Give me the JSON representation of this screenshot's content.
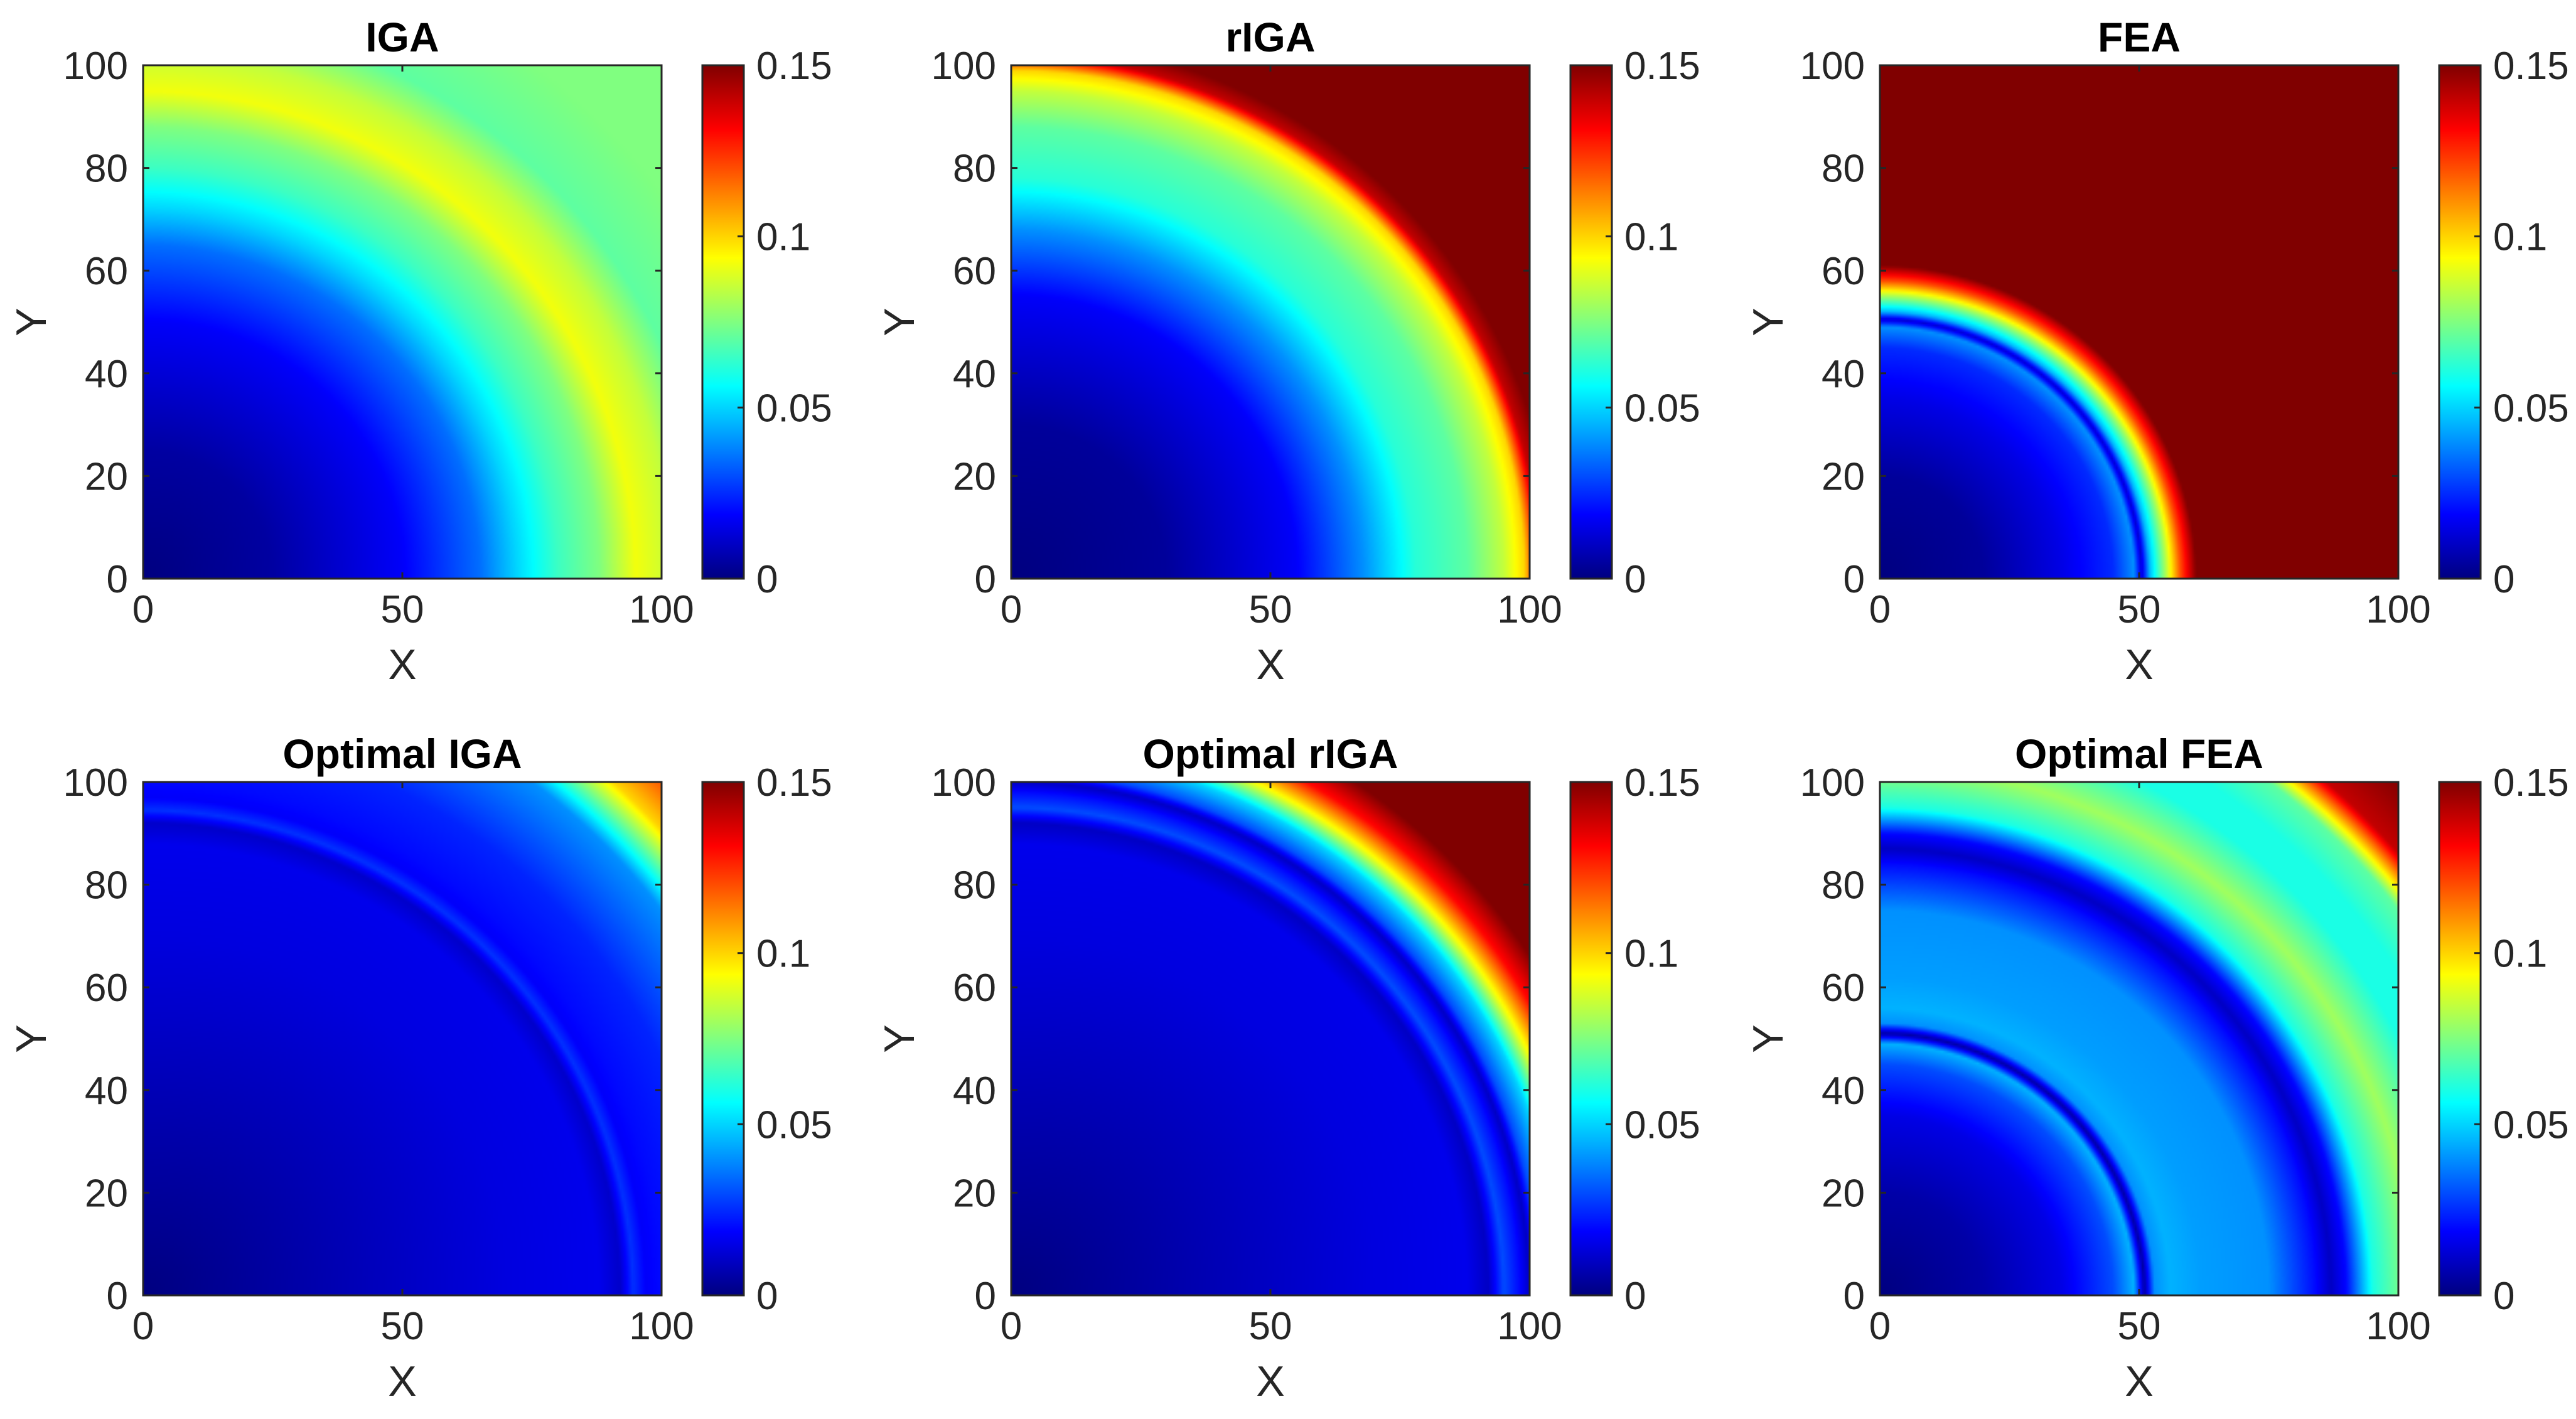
{
  "chart_data": [
    {
      "type": "heatmap",
      "title": "IGA",
      "xlabel": "X",
      "ylabel": "Y",
      "xlim": [
        0,
        100
      ],
      "ylim": [
        0,
        100
      ],
      "x_ticks": [
        "0",
        "50",
        "100"
      ],
      "y_ticks": [
        "0",
        "20",
        "40",
        "60",
        "80",
        "100"
      ],
      "colorbar": {
        "colormap": "jet",
        "range": [
          0,
          0.15
        ],
        "ticks": [
          "0",
          "0.05",
          "0.1",
          "0.15"
        ]
      },
      "field": {
        "description_key": "radial",
        "profile_r": [
          0,
          25,
          50,
          65,
          72,
          80,
          88,
          95,
          102,
          110,
          125,
          142
        ],
        "profile_v": [
          0.0,
          0.005,
          0.018,
          0.035,
          0.05,
          0.065,
          0.075,
          0.092,
          0.085,
          0.07,
          0.075,
          0.075
        ]
      }
    },
    {
      "type": "heatmap",
      "title": "rIGA",
      "xlabel": "X",
      "ylabel": "Y",
      "xlim": [
        0,
        100
      ],
      "ylim": [
        0,
        100
      ],
      "x_ticks": [
        "0",
        "50",
        "100"
      ],
      "y_ticks": [
        "0",
        "20",
        "40",
        "60",
        "80",
        "100"
      ],
      "colorbar": {
        "colormap": "jet",
        "range": [
          0,
          0.15
        ],
        "ticks": [
          "0",
          "0.05",
          "0.1",
          "0.15"
        ]
      },
      "field": {
        "description_key": "radial",
        "profile_r": [
          0,
          30,
          55,
          68,
          78,
          88,
          95,
          99,
          102,
          105,
          142
        ],
        "profile_v": [
          0.0,
          0.004,
          0.018,
          0.04,
          0.062,
          0.07,
          0.085,
          0.1,
          0.14,
          0.15,
          0.15
        ]
      }
    },
    {
      "type": "heatmap",
      "title": "FEA",
      "xlabel": "X",
      "ylabel": "Y",
      "xlim": [
        0,
        100
      ],
      "ylim": [
        0,
        100
      ],
      "x_ticks": [
        "0",
        "50",
        "100"
      ],
      "y_ticks": [
        "0",
        "20",
        "40",
        "60",
        "80",
        "100"
      ],
      "colorbar": {
        "colormap": "jet",
        "range": [
          0,
          0.15
        ],
        "ticks": [
          "0",
          "0.05",
          "0.1",
          "0.15"
        ]
      },
      "field": {
        "description_key": "radial",
        "profile_r": [
          0,
          20,
          35,
          45,
          49,
          50.5,
          52,
          55,
          58,
          61,
          142
        ],
        "profile_v": [
          0.0,
          0.004,
          0.015,
          0.025,
          0.04,
          0.012,
          0.045,
          0.08,
          0.12,
          0.15,
          0.15
        ]
      }
    },
    {
      "type": "heatmap",
      "title": "Optimal IGA",
      "xlabel": "X",
      "ylabel": "Y",
      "xlim": [
        0,
        100
      ],
      "ylim": [
        0,
        100
      ],
      "x_ticks": [
        "0",
        "50",
        "100"
      ],
      "y_ticks": [
        "0",
        "20",
        "40",
        "60",
        "80",
        "100"
      ],
      "colorbar": {
        "colormap": "jet",
        "range": [
          0,
          0.15
        ],
        "ticks": [
          "0",
          "0.05",
          "0.1",
          "0.15"
        ]
      },
      "field": {
        "description_key": "radial",
        "profile_r": [
          0,
          40,
          70,
          88,
          92,
          94.5,
          97,
          100,
          110,
          125,
          135,
          142
        ],
        "profile_v": [
          0.0,
          0.008,
          0.014,
          0.016,
          0.011,
          0.026,
          0.018,
          0.02,
          0.024,
          0.04,
          0.1,
          0.12
        ]
      }
    },
    {
      "type": "heatmap",
      "title": "Optimal rIGA",
      "xlabel": "X",
      "ylabel": "Y",
      "xlim": [
        0,
        100
      ],
      "ylim": [
        0,
        100
      ],
      "x_ticks": [
        "0",
        "50",
        "100"
      ],
      "y_ticks": [
        "0",
        "20",
        "40",
        "60",
        "80",
        "100"
      ],
      "colorbar": {
        "colormap": "jet",
        "range": [
          0,
          0.15
        ],
        "ticks": [
          "0",
          "0.05",
          "0.1",
          "0.15"
        ]
      },
      "field": {
        "description_key": "radial",
        "profile_r": [
          0,
          40,
          70,
          88,
          92,
          95,
          98,
          100,
          102,
          106,
          110,
          115,
          120,
          142
        ],
        "profile_v": [
          0.0,
          0.008,
          0.014,
          0.016,
          0.01,
          0.03,
          0.02,
          0.01,
          0.03,
          0.05,
          0.09,
          0.13,
          0.15,
          0.15
        ]
      }
    },
    {
      "type": "heatmap",
      "title": "Optimal FEA",
      "xlabel": "X",
      "ylabel": "Y",
      "xlim": [
        0,
        100
      ],
      "ylim": [
        0,
        100
      ],
      "x_ticks": [
        "0",
        "50",
        "100"
      ],
      "y_ticks": [
        "0",
        "20",
        "40",
        "60",
        "80",
        "100"
      ],
      "colorbar": {
        "colormap": "jet",
        "range": [
          0,
          0.15
        ],
        "ticks": [
          "0",
          "0.05",
          "0.1",
          "0.15"
        ]
      },
      "field": {
        "description_key": "radial",
        "profile_r": [
          0,
          20,
          35,
          45,
          49,
          51,
          53,
          56,
          62,
          75,
          84,
          87,
          90,
          95,
          103,
          112,
          118,
          125,
          132,
          142
        ],
        "profile_v": [
          0.0,
          0.006,
          0.015,
          0.03,
          0.045,
          0.005,
          0.04,
          0.045,
          0.042,
          0.04,
          0.02,
          0.01,
          0.02,
          0.06,
          0.08,
          0.06,
          0.06,
          0.07,
          0.14,
          0.15
        ]
      }
    }
  ]
}
